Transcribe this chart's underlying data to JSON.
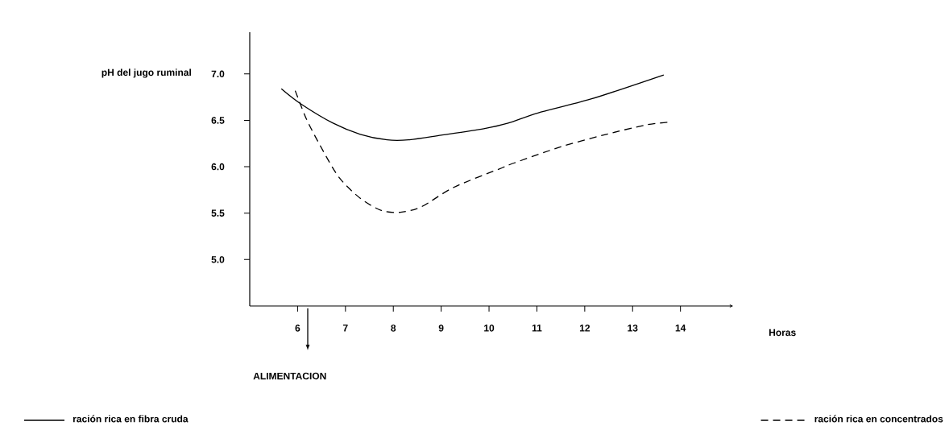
{
  "chart_data": {
    "type": "line",
    "xlabel": "Horas",
    "ylabel": "pH del jugo ruminal",
    "xlim": [
      5,
      15.1
    ],
    "ylim": [
      4.5,
      7.45
    ],
    "xticks": [
      6,
      7,
      8,
      9,
      10,
      11,
      12,
      13,
      14
    ],
    "yticks": [
      {
        "value": 5,
        "label": "5.0"
      },
      {
        "value": 5.5,
        "label": "5.5"
      },
      {
        "value": 6,
        "label": "6.0"
      },
      {
        "value": 6.5,
        "label": "6.5"
      },
      {
        "value": 7,
        "label": "7.0"
      }
    ],
    "legend": "bottom",
    "grid": false,
    "marker": "none",
    "annotations": [
      "ALIMENTACION"
    ],
    "series": [
      {
        "name": "ración rica en fibra cruda",
        "color": "#000000",
        "line_style": "solid",
        "x": [
          5.66,
          6.06,
          6.74,
          7.31,
          7.87,
          8.32,
          9.0,
          9.89,
          10.4,
          11.02,
          12.13,
          13.65
        ],
        "values": [
          6.84,
          6.68,
          6.47,
          6.35,
          6.29,
          6.29,
          6.34,
          6.41,
          6.47,
          6.58,
          6.73,
          6.99
        ]
      },
      {
        "name": "ración rica en concentrados",
        "color": "#000000",
        "line_style": "dashed",
        "x": [
          5.95,
          6.18,
          6.47,
          6.86,
          7.31,
          7.75,
          8.15,
          8.59,
          9.27,
          10.28,
          10.52,
          11.47,
          12.38,
          13.27,
          13.75
        ],
        "values": [
          6.82,
          6.52,
          6.23,
          5.89,
          5.66,
          5.53,
          5.51,
          5.57,
          5.78,
          5.99,
          6.04,
          6.21,
          6.34,
          6.45,
          6.48
        ]
      }
    ]
  }
}
